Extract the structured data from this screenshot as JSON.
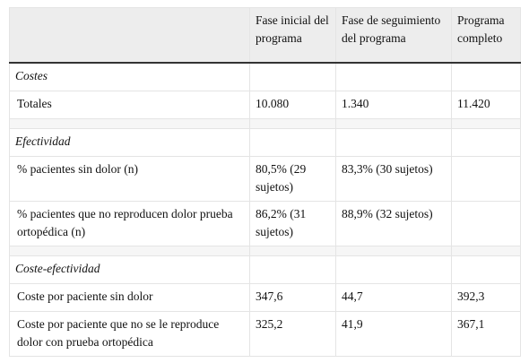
{
  "header": {
    "columns": [
      "Fase inicial del programa",
      "Fase de seguimiento del programa",
      "Programa completo"
    ]
  },
  "sections": [
    {
      "title": "Costes",
      "rows": [
        {
          "label": "Totales",
          "values": [
            "10.080",
            "1.340",
            "11.420"
          ]
        }
      ]
    },
    {
      "title": "Efectividad",
      "rows": [
        {
          "label": "% pacientes sin dolor (n)",
          "values": [
            "80,5% (29 sujetos)",
            "83,3% (30 sujetos)"
          ]
        },
        {
          "label": "% pacientes que no reproducen dolor prueba ortopédica (n)",
          "values": [
            "86,2% (31 sujetos)",
            "88,9% (32 sujetos)"
          ]
        }
      ]
    },
    {
      "title": "Coste-efectividad",
      "rows": [
        {
          "label": "Coste por paciente sin dolor",
          "values": [
            "347,6",
            "44,7",
            "392,3"
          ]
        },
        {
          "label": "Coste por paciente que no se le reproduce dolor con prueba ortopédica",
          "values": [
            "325,2",
            "41,9",
            "367,1"
          ]
        }
      ]
    }
  ]
}
